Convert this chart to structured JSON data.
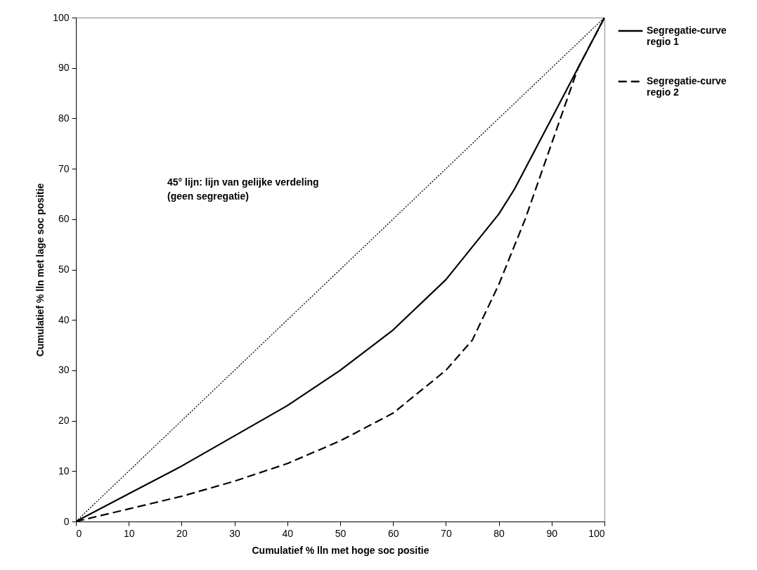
{
  "chart_data": {
    "type": "line",
    "xlabel": "Cumulatief % lln met hoge soc positie",
    "ylabel": "Cumulatief % lln met lage soc positie",
    "annotations": [
      "45° lijn: lijn van gelijke verdeling\n(geen segregatie)"
    ],
    "xlim": [
      0,
      100
    ],
    "ylim": [
      0,
      100
    ],
    "xticks": [
      0,
      10,
      20,
      30,
      40,
      50,
      60,
      70,
      80,
      90,
      100
    ],
    "yticks": [
      0,
      10,
      20,
      30,
      40,
      50,
      60,
      70,
      80,
      90,
      100
    ],
    "grid": false,
    "legend": "right",
    "series": [
      {
        "color": "#000000",
        "line_style": "dotted",
        "x": [
          0,
          100
        ],
        "values": [
          0,
          100
        ]
      },
      {
        "name": "Segregatie-curve regio 1",
        "color": "#000000",
        "line_style": "solid",
        "x": [
          0,
          10,
          20,
          30,
          40,
          50,
          60,
          70,
          80,
          83,
          90,
          100
        ],
        "values": [
          0,
          5.5,
          11,
          17,
          23,
          30,
          38,
          48,
          61,
          66,
          80,
          100
        ]
      },
      {
        "name": "Segregatie-curve regio 2",
        "color": "#000000",
        "line_style": "dashed",
        "x": [
          0,
          10,
          20,
          30,
          40,
          50,
          60,
          70,
          75,
          80,
          85,
          90,
          95,
          100
        ],
        "values": [
          0,
          2.5,
          5,
          8,
          11.5,
          16,
          21.5,
          30,
          36,
          47,
          60,
          75,
          90,
          100
        ]
      }
    ]
  }
}
